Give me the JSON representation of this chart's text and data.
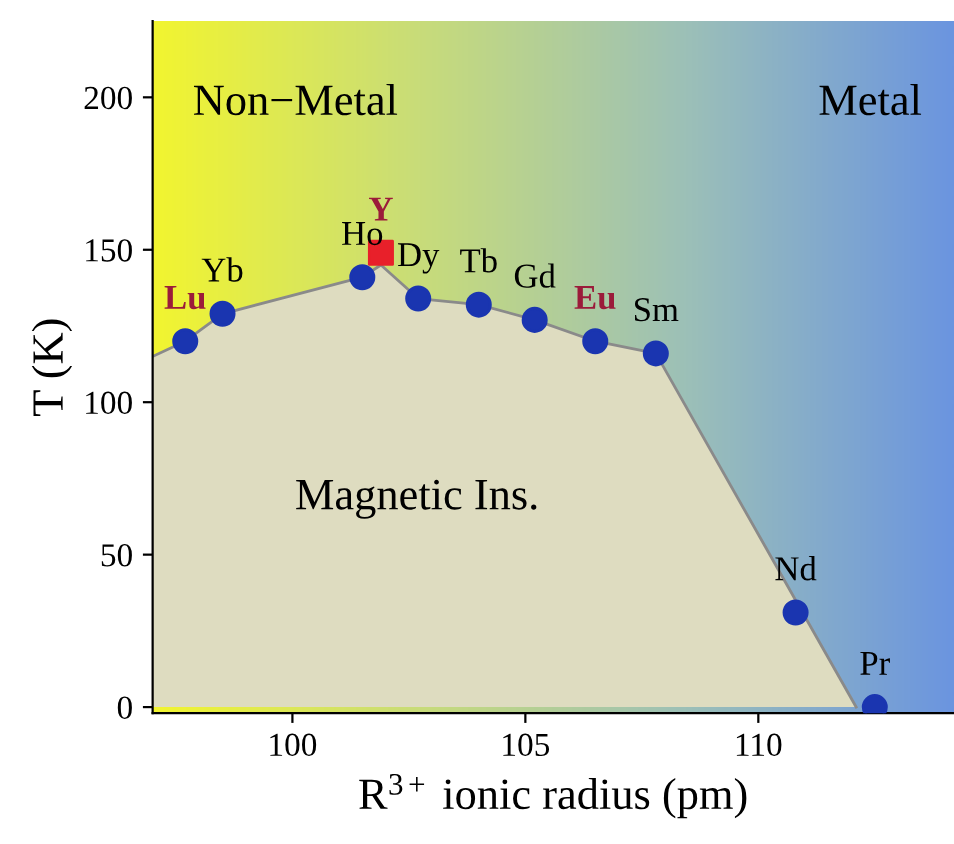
{
  "chart_data": {
    "type": "scatter",
    "xlabel": "R$^{3+}$ ionic radius (pm)",
    "ylabel": "T (K)",
    "xlim": [
      97,
      114.2
    ],
    "xticks": [
      100,
      105,
      110
    ],
    "ylim": [
      -2,
      225
    ],
    "yticks": [
      0,
      50,
      100,
      150,
      200
    ],
    "grid": false,
    "legend": false,
    "series": [
      {
        "type": "area",
        "color": "#dedcc0",
        "x": [
          97,
          97.7,
          98.5,
          101.5,
          101.9,
          102.7,
          104,
          105.2,
          106.5,
          107.8,
          112.1
        ],
        "values": [
          115,
          120,
          129,
          141,
          145,
          134,
          132,
          127,
          120,
          116,
          0
        ]
      },
      {
        "type": "scatter",
        "marker": "circle",
        "color": "#1a35b0",
        "x": [
          98.5,
          101.5,
          102.7,
          104.0,
          105.2,
          107.8,
          110.8,
          112.5
        ],
        "values": [
          129,
          141,
          134,
          132,
          127,
          116,
          31,
          0
        ],
        "value_labels": [
          "Yb",
          "Ho",
          "Dy",
          "Tb",
          "Gd",
          "Sm",
          "Nd",
          "Pr"
        ]
      },
      {
        "marker": "circle",
        "color": "#1a35b0",
        "x": [
          97.7,
          106.5
        ],
        "values": [
          120,
          120
        ],
        "value_labels": [
          "Lu",
          "Eu"
        ]
      },
      {
        "type": "scatter",
        "marker": "square",
        "color": "#e8202a",
        "x": [
          101.9
        ],
        "values": [
          149
        ],
        "value_labels": [
          "Y"
        ]
      }
    ],
    "annotations": [
      "Non−Metal",
      "Metal",
      "Magnetic Ins."
    ]
  }
}
